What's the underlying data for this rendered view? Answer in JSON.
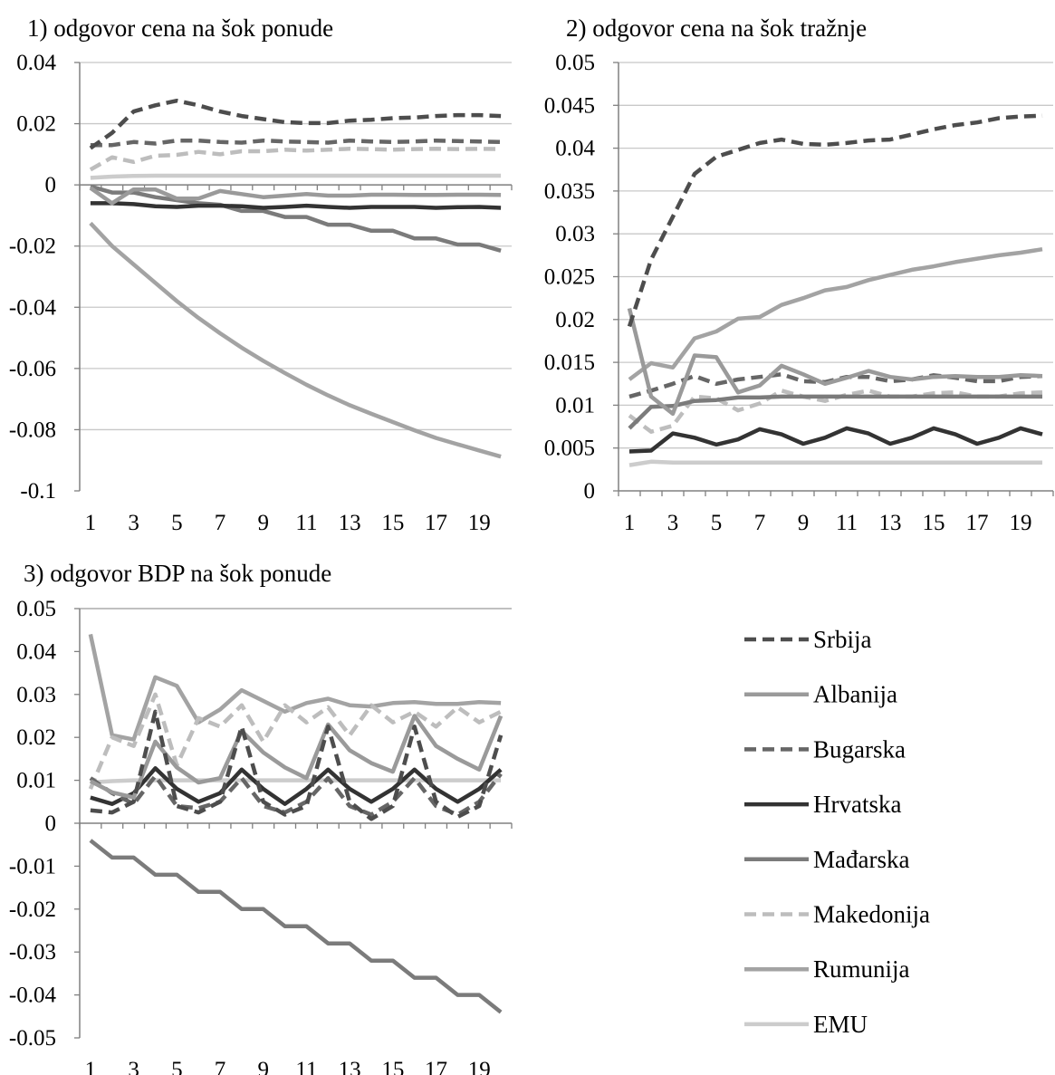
{
  "colors": {
    "Srbija": "#4d4d4d",
    "Albanija": "#9a9a9a",
    "Bugarska": "#666666",
    "Hrvatska": "#333333",
    "Mađarska": "#7b7b7b",
    "Makedonija": "#bdbdbd",
    "Rumunija": "#a3a3a3",
    "EMU": "#cccccc",
    "grid": "#c8c8c8",
    "axis": "#808080"
  },
  "legend": [
    {
      "name": "Srbija",
      "dashed": true
    },
    {
      "name": "Albanija",
      "dashed": false
    },
    {
      "name": "Bugarska",
      "dashed": true
    },
    {
      "name": "Hrvatska",
      "dashed": false
    },
    {
      "name": "Mađarska",
      "dashed": false
    },
    {
      "name": "Makedonija",
      "dashed": true
    },
    {
      "name": "Rumunija",
      "dashed": false
    },
    {
      "name": "EMU",
      "dashed": false
    }
  ],
  "chart_data": [
    {
      "type": "line",
      "title": "1) odgovor cena na šok ponude",
      "x": [
        1,
        2,
        3,
        4,
        5,
        6,
        7,
        8,
        9,
        10,
        11,
        12,
        13,
        14,
        15,
        16,
        17,
        18,
        19,
        20
      ],
      "xticks": [
        "1",
        "3",
        "5",
        "7",
        "9",
        "11",
        "13",
        "15",
        "17",
        "19"
      ],
      "yticks": [
        "0.04",
        "0.02",
        "0",
        "-0.02",
        "-0.04",
        "-0.06",
        "-0.08",
        "-0.1"
      ],
      "ylim": [
        -0.1,
        0.04
      ],
      "grid": true,
      "series": [
        {
          "name": "Srbija",
          "values": [
            0.012,
            0.017,
            0.024,
            0.026,
            0.0275,
            0.026,
            0.024,
            0.0225,
            0.0215,
            0.0205,
            0.0202,
            0.0202,
            0.021,
            0.0213,
            0.0218,
            0.022,
            0.0225,
            0.0228,
            0.0228,
            0.0225
          ]
        },
        {
          "name": "Albanija",
          "values": [
            -0.001,
            -0.006,
            -0.0015,
            -0.0015,
            -0.0045,
            -0.0045,
            -0.002,
            -0.003,
            -0.004,
            -0.0035,
            -0.003,
            -0.0035,
            -0.0035,
            -0.0032,
            -0.0032,
            -0.0033,
            -0.0033,
            -0.0032,
            -0.0032,
            -0.0033
          ]
        },
        {
          "name": "Bugarska",
          "values": [
            0.013,
            0.013,
            0.014,
            0.0135,
            0.0145,
            0.0145,
            0.014,
            0.0138,
            0.0145,
            0.0142,
            0.014,
            0.0138,
            0.0145,
            0.0142,
            0.014,
            0.0142,
            0.0145,
            0.0143,
            0.0142,
            0.014
          ]
        },
        {
          "name": "Hrvatska",
          "values": [
            -0.006,
            -0.006,
            -0.0063,
            -0.007,
            -0.0072,
            -0.0068,
            -0.0068,
            -0.007,
            -0.0075,
            -0.0072,
            -0.0068,
            -0.0072,
            -0.0075,
            -0.0072,
            -0.0072,
            -0.0072,
            -0.0075,
            -0.0073,
            -0.0072,
            -0.0075
          ]
        },
        {
          "name": "Mađarska",
          "values": [
            -0.0005,
            -0.0025,
            -0.0025,
            -0.004,
            -0.005,
            -0.006,
            -0.0065,
            -0.0085,
            -0.0085,
            -0.0105,
            -0.0105,
            -0.013,
            -0.013,
            -0.015,
            -0.015,
            -0.0175,
            -0.0175,
            -0.0195,
            -0.0195,
            -0.0215
          ]
        },
        {
          "name": "Makedonija",
          "values": [
            0.005,
            0.009,
            0.0075,
            0.0095,
            0.0098,
            0.0108,
            0.01,
            0.011,
            0.011,
            0.0115,
            0.0112,
            0.0115,
            0.0118,
            0.0117,
            0.0115,
            0.0117,
            0.0118,
            0.0117,
            0.0118,
            0.0117
          ]
        },
        {
          "name": "Rumunija",
          "values": [
            -0.0125,
            -0.02,
            -0.026,
            -0.032,
            -0.038,
            -0.0435,
            -0.0485,
            -0.0532,
            -0.0575,
            -0.0615,
            -0.0653,
            -0.0688,
            -0.072,
            -0.0748,
            -0.0775,
            -0.0802,
            -0.0827,
            -0.0848,
            -0.0868,
            -0.0888
          ]
        },
        {
          "name": "EMU",
          "values": [
            0.0023,
            0.0027,
            0.0029,
            0.003,
            0.003,
            0.003,
            0.003,
            0.003,
            0.003,
            0.003,
            0.003,
            0.003,
            0.003,
            0.003,
            0.003,
            0.003,
            0.003,
            0.003,
            0.003,
            0.003
          ]
        }
      ]
    },
    {
      "type": "line",
      "title": "2) odgovor cena na šok tražnje",
      "x": [
        1,
        2,
        3,
        4,
        5,
        6,
        7,
        8,
        9,
        10,
        11,
        12,
        13,
        14,
        15,
        16,
        17,
        18,
        19,
        20
      ],
      "xticks": [
        "1",
        "3",
        "5",
        "7",
        "9",
        "11",
        "13",
        "15",
        "17",
        "19"
      ],
      "yticks": [
        "0.05",
        "0.045",
        "0.04",
        "0.035",
        "0.03",
        "0.025",
        "0.02",
        "0.015",
        "0.01",
        "0.005",
        "0"
      ],
      "ylim": [
        0,
        0.05
      ],
      "grid": true,
      "series": [
        {
          "name": "Srbija",
          "values": [
            0.0192,
            0.027,
            0.032,
            0.037,
            0.039,
            0.0398,
            0.0406,
            0.041,
            0.0405,
            0.0404,
            0.0406,
            0.0409,
            0.041,
            0.0416,
            0.0422,
            0.0427,
            0.043,
            0.0435,
            0.0437,
            0.0438
          ]
        },
        {
          "name": "Albanija",
          "values": [
            0.0213,
            0.011,
            0.009,
            0.0158,
            0.0156,
            0.0115,
            0.0123,
            0.0146,
            0.0136,
            0.0125,
            0.0132,
            0.014,
            0.0133,
            0.013,
            0.0133,
            0.0134,
            0.0133,
            0.0133,
            0.0135,
            0.0134
          ]
        },
        {
          "name": "Bugarska",
          "values": [
            0.011,
            0.0117,
            0.0125,
            0.0134,
            0.0125,
            0.013,
            0.0133,
            0.0136,
            0.0128,
            0.0127,
            0.0133,
            0.0133,
            0.0128,
            0.013,
            0.0135,
            0.0132,
            0.0128,
            0.0128,
            0.0133,
            0.0134
          ]
        },
        {
          "name": "Hrvatska",
          "values": [
            0.0046,
            0.0047,
            0.0067,
            0.0062,
            0.0054,
            0.006,
            0.0072,
            0.0066,
            0.0055,
            0.0062,
            0.0073,
            0.0067,
            0.0055,
            0.0062,
            0.0073,
            0.0066,
            0.0055,
            0.0062,
            0.0073,
            0.0066
          ]
        },
        {
          "name": "Mađarska",
          "values": [
            0.0073,
            0.0098,
            0.0099,
            0.0105,
            0.0106,
            0.0109,
            0.0109,
            0.011,
            0.011,
            0.011,
            0.011,
            0.011,
            0.011,
            0.011,
            0.011,
            0.011,
            0.011,
            0.011,
            0.011,
            0.011
          ]
        },
        {
          "name": "Makedonija",
          "values": [
            0.0088,
            0.0069,
            0.0076,
            0.011,
            0.0108,
            0.0094,
            0.0102,
            0.0117,
            0.011,
            0.0105,
            0.0112,
            0.0117,
            0.011,
            0.011,
            0.0114,
            0.0115,
            0.011,
            0.011,
            0.0114,
            0.0115
          ]
        },
        {
          "name": "Rumunija",
          "values": [
            0.013,
            0.0149,
            0.0144,
            0.0178,
            0.0186,
            0.0201,
            0.0203,
            0.0217,
            0.0225,
            0.0234,
            0.0238,
            0.0246,
            0.0252,
            0.0258,
            0.0262,
            0.0267,
            0.0271,
            0.0275,
            0.0278,
            0.0282
          ]
        },
        {
          "name": "EMU",
          "values": [
            0.003,
            0.0034,
            0.0033,
            0.0033,
            0.0033,
            0.0033,
            0.0033,
            0.0033,
            0.0033,
            0.0033,
            0.0033,
            0.0033,
            0.0033,
            0.0033,
            0.0033,
            0.0033,
            0.0033,
            0.0033,
            0.0033,
            0.0033
          ]
        }
      ]
    },
    {
      "type": "line",
      "title": "3) odgovor BDP na šok ponude",
      "x": [
        1,
        2,
        3,
        4,
        5,
        6,
        7,
        8,
        9,
        10,
        11,
        12,
        13,
        14,
        15,
        16,
        17,
        18,
        19,
        20
      ],
      "xticks": [
        "1",
        "3",
        "5",
        "7",
        "9",
        "11",
        "13",
        "15",
        "17",
        "19"
      ],
      "yticks": [
        "0.05",
        "0.04",
        "0.03",
        "0.02",
        "0.01",
        "0",
        "-0.01",
        "-0.02",
        "-0.03",
        "-0.04",
        "-0.05"
      ],
      "ylim": [
        -0.05,
        0.05
      ],
      "grid": false,
      "series": [
        {
          "name": "Srbija",
          "values": [
            0.003,
            0.0025,
            0.005,
            0.026,
            0.004,
            0.0025,
            0.005,
            0.0225,
            0.005,
            0.002,
            0.004,
            0.0225,
            0.005,
            0.001,
            0.004,
            0.0225,
            0.005,
            0.0015,
            0.004,
            0.0205
          ]
        },
        {
          "name": "Albanija",
          "values": [
            0.0098,
            0.0072,
            0.006,
            0.019,
            0.013,
            0.0095,
            0.0105,
            0.0215,
            0.0165,
            0.013,
            0.0105,
            0.023,
            0.017,
            0.014,
            0.012,
            0.025,
            0.018,
            0.015,
            0.0125,
            0.025
          ]
        },
        {
          "name": "Bugarska",
          "values": [
            0.0105,
            0.007,
            0.0045,
            0.011,
            0.004,
            0.0035,
            0.005,
            0.0105,
            0.004,
            0.0025,
            0.005,
            0.0105,
            0.004,
            0.002,
            0.005,
            0.0105,
            0.004,
            0.002,
            0.005,
            0.0115
          ]
        },
        {
          "name": "Hrvatska",
          "values": [
            0.006,
            0.0045,
            0.007,
            0.0128,
            0.008,
            0.005,
            0.007,
            0.0125,
            0.008,
            0.0045,
            0.008,
            0.0125,
            0.008,
            0.005,
            0.008,
            0.0125,
            0.008,
            0.005,
            0.008,
            0.0125
          ]
        },
        {
          "name": "Mađarska",
          "values": [
            -0.004,
            -0.008,
            -0.008,
            -0.012,
            -0.012,
            -0.016,
            -0.016,
            -0.02,
            -0.02,
            -0.024,
            -0.024,
            -0.028,
            -0.028,
            -0.032,
            -0.032,
            -0.036,
            -0.036,
            -0.04,
            -0.04,
            -0.044
          ]
        },
        {
          "name": "Makedonija",
          "values": [
            0.008,
            0.02,
            0.018,
            0.03,
            0.0135,
            0.0245,
            0.0225,
            0.0275,
            0.019,
            0.0275,
            0.0235,
            0.027,
            0.0205,
            0.0275,
            0.0235,
            0.026,
            0.0225,
            0.027,
            0.0235,
            0.026
          ]
        },
        {
          "name": "Rumunija",
          "values": [
            0.044,
            0.0205,
            0.0195,
            0.034,
            0.032,
            0.0235,
            0.0265,
            0.031,
            0.0285,
            0.026,
            0.028,
            0.029,
            0.0275,
            0.0272,
            0.028,
            0.0282,
            0.0278,
            0.0278,
            0.0282,
            0.028
          ]
        },
        {
          "name": "EMU",
          "values": [
            0.0095,
            0.0098,
            0.01,
            0.01,
            0.01,
            0.01,
            0.01,
            0.01,
            0.01,
            0.01,
            0.01,
            0.01,
            0.01,
            0.01,
            0.01,
            0.01,
            0.01,
            0.01,
            0.01,
            0.01
          ]
        }
      ]
    }
  ]
}
